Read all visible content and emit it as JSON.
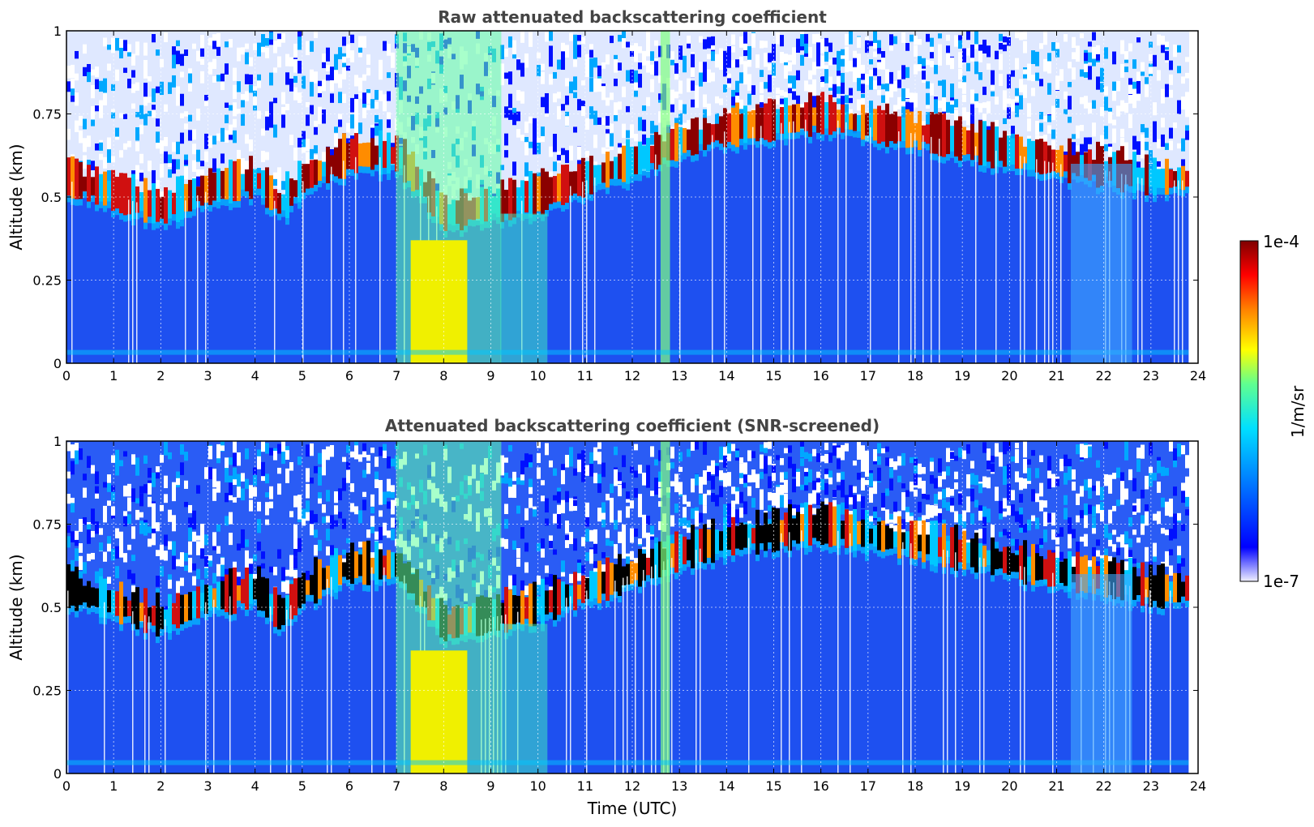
{
  "chart_data": [
    {
      "type": "heatmap",
      "title": "Raw attenuated backscattering coefficient",
      "xlabel": "",
      "ylabel": "Altitude (km)",
      "xlim": [
        0,
        24
      ],
      "ylim": [
        0,
        1
      ],
      "x_ticks": [
        "0",
        "1",
        "2",
        "3",
        "4",
        "5",
        "6",
        "7",
        "8",
        "9",
        "10",
        "11",
        "12",
        "13",
        "14",
        "15",
        "16",
        "17",
        "18",
        "19",
        "20",
        "21",
        "22",
        "23",
        "24"
      ],
      "y_ticks": [
        "0",
        "0.25",
        "0.5",
        "0.75",
        "1"
      ],
      "grid": true,
      "colorscale": "jet",
      "data_end_hour": 23.8,
      "layer_top_profile": {
        "x": [
          0,
          2,
          3,
          4,
          4.5,
          5,
          6,
          7,
          8,
          9,
          10,
          11,
          12,
          13,
          14,
          15,
          16,
          17,
          18,
          19,
          20,
          21,
          22,
          23,
          23.8
        ],
        "y": [
          0.55,
          0.46,
          0.52,
          0.55,
          0.47,
          0.55,
          0.62,
          0.62,
          0.44,
          0.47,
          0.5,
          0.55,
          0.6,
          0.66,
          0.7,
          0.72,
          0.74,
          0.71,
          0.69,
          0.66,
          0.63,
          0.6,
          0.58,
          0.55,
          0.55
        ]
      },
      "aerosol_plume": {
        "x_start": 7.3,
        "x_end": 8.5,
        "y_top": 0.37
      }
    },
    {
      "type": "heatmap",
      "title": "Attenuated backscattering coefficient (SNR-screened)",
      "xlabel": "Time (UTC)",
      "ylabel": "Altitude (km)",
      "xlim": [
        0,
        24
      ],
      "ylim": [
        0,
        1
      ],
      "x_ticks": [
        "0",
        "1",
        "2",
        "3",
        "4",
        "5",
        "6",
        "7",
        "8",
        "9",
        "10",
        "11",
        "12",
        "13",
        "14",
        "15",
        "16",
        "17",
        "18",
        "19",
        "20",
        "21",
        "22",
        "23",
        "24"
      ],
      "y_ticks": [
        "0",
        "0.25",
        "0.5",
        "0.75",
        "1"
      ],
      "grid": true,
      "colorscale": "jet",
      "data_end_hour": 23.8
    }
  ],
  "colorbar": {
    "label": "1/m/sr",
    "max_label": "1e-4",
    "min_label": "1e-7",
    "scale": "log",
    "range": [
      1e-07,
      0.0001
    ]
  }
}
